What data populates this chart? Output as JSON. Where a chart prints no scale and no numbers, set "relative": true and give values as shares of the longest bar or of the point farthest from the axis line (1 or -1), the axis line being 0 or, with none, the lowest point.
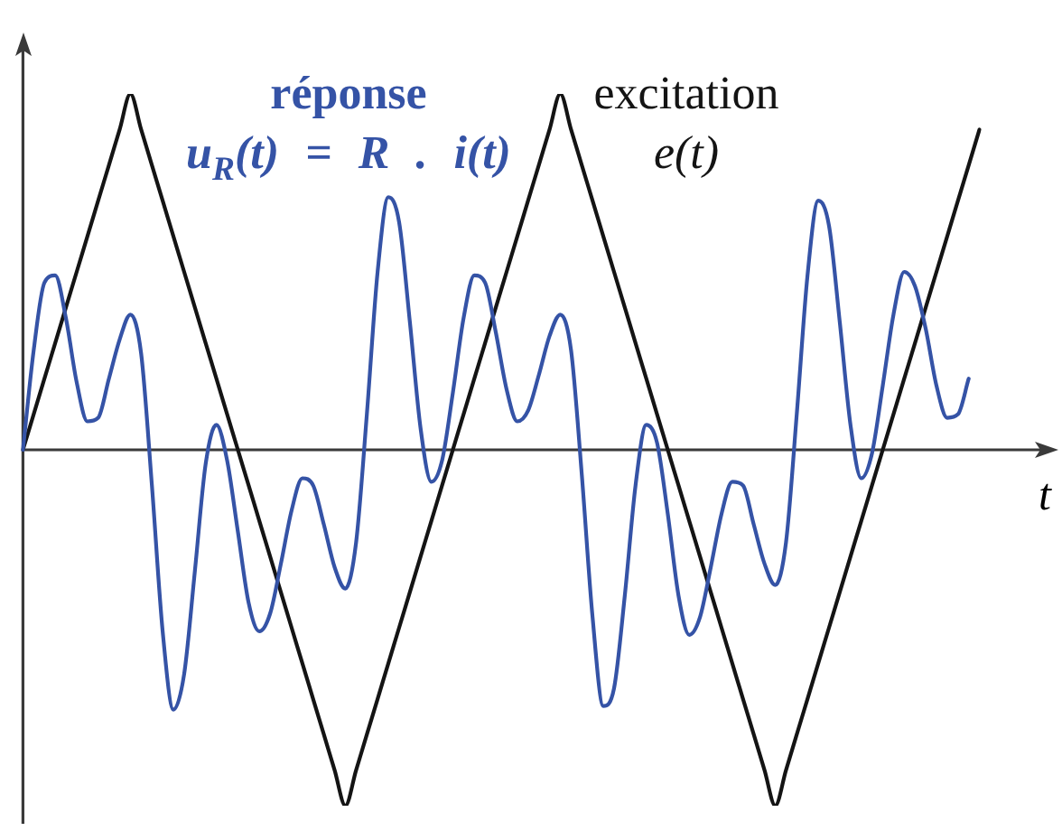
{
  "chart_data": {
    "type": "line",
    "relative": true,
    "marker": "none",
    "xlabel": "t",
    "categories": [
      null,
      null,
      null,
      null,
      null,
      null,
      null,
      null,
      null,
      null,
      null,
      null,
      null,
      null,
      null,
      null,
      null,
      null,
      null,
      null,
      null,
      null,
      null,
      null,
      null,
      null,
      null,
      null,
      null,
      null,
      null,
      null,
      null,
      null,
      null,
      null,
      null,
      null,
      null,
      null,
      null,
      null,
      null,
      null,
      null,
      null,
      null,
      null,
      null,
      null,
      null,
      null,
      null,
      null,
      null,
      null,
      null,
      null,
      null,
      null,
      null,
      null,
      null,
      null,
      null,
      null,
      null,
      null,
      null,
      null,
      null,
      null,
      null,
      null,
      null,
      null,
      null,
      null,
      null,
      null,
      null,
      null,
      null,
      null,
      null,
      null,
      null,
      null,
      null,
      null
    ],
    "series": [
      {
        "name": "réponse\nu$_{R}$(t) = R . i(t)",
        "color": "#3553a6",
        "values": [
          0,
          0.28,
          0.47,
          0.49,
          0.37,
          0.19,
          0.08,
          0.09,
          0.2,
          0.31,
          0.38,
          0.27,
          -0.1,
          -0.51,
          -0.73,
          -0.63,
          -0.34,
          -0.04,
          0.07,
          -0.03,
          -0.23,
          -0.43,
          -0.51,
          -0.46,
          -0.32,
          -0.17,
          -0.08,
          -0.1,
          -0.21,
          -0.33,
          -0.39,
          -0.26,
          0.1,
          0.5,
          0.71,
          0.64,
          0.36,
          0.06,
          -0.09,
          -0.03,
          0.16,
          0.37,
          0.49,
          0.47,
          0.33,
          0.17,
          0.08,
          0.11,
          0.21,
          0.32,
          0.38,
          0.28,
          -0.07,
          -0.47,
          -0.72,
          -0.67,
          -0.41,
          -0.1,
          0.07,
          0.02,
          -0.18,
          -0.41,
          -0.52,
          -0.47,
          -0.33,
          -0.18,
          -0.09,
          -0.1,
          -0.21,
          -0.32,
          -0.38,
          -0.26,
          0.1,
          0.49,
          0.7,
          0.63,
          0.36,
          0.07,
          -0.08,
          -0.01,
          0.18,
          0.38,
          0.5,
          0.46,
          0.34,
          0.18,
          0.09,
          0.1,
          0.2,
          null
        ]
      },
      {
        "name": "excitation\ne(t)",
        "color": "#141414",
        "values": [
          0,
          0.1,
          0.2,
          0.3,
          0.4,
          0.5,
          0.6,
          0.7,
          0.8,
          0.9,
          1,
          0.9,
          0.8,
          0.7,
          0.6,
          0.5,
          0.4,
          0.3,
          0.2,
          0.1,
          0,
          -0.1,
          -0.2,
          -0.3,
          -0.4,
          -0.5,
          -0.6,
          -0.7,
          -0.8,
          -0.9,
          -1,
          -0.9,
          -0.8,
          -0.7,
          -0.6,
          -0.5,
          -0.4,
          -0.3,
          -0.2,
          -0.1,
          0,
          0.1,
          0.2,
          0.3,
          0.4,
          0.5,
          0.6,
          0.7,
          0.8,
          0.9,
          1,
          0.9,
          0.8,
          0.7,
          0.6,
          0.5,
          0.4,
          0.3,
          0.2,
          0.1,
          0,
          -0.1,
          -0.2,
          -0.3,
          -0.4,
          -0.5,
          -0.6,
          -0.7,
          -0.8,
          -0.9,
          -1,
          -0.9,
          -0.8,
          -0.7,
          -0.6,
          -0.5,
          -0.4,
          -0.3,
          -0.2,
          -0.1,
          0,
          0.1,
          0.2,
          0.3,
          0.4,
          0.5,
          0.6,
          0.7,
          0.8,
          0.9
        ]
      }
    ]
  }
}
